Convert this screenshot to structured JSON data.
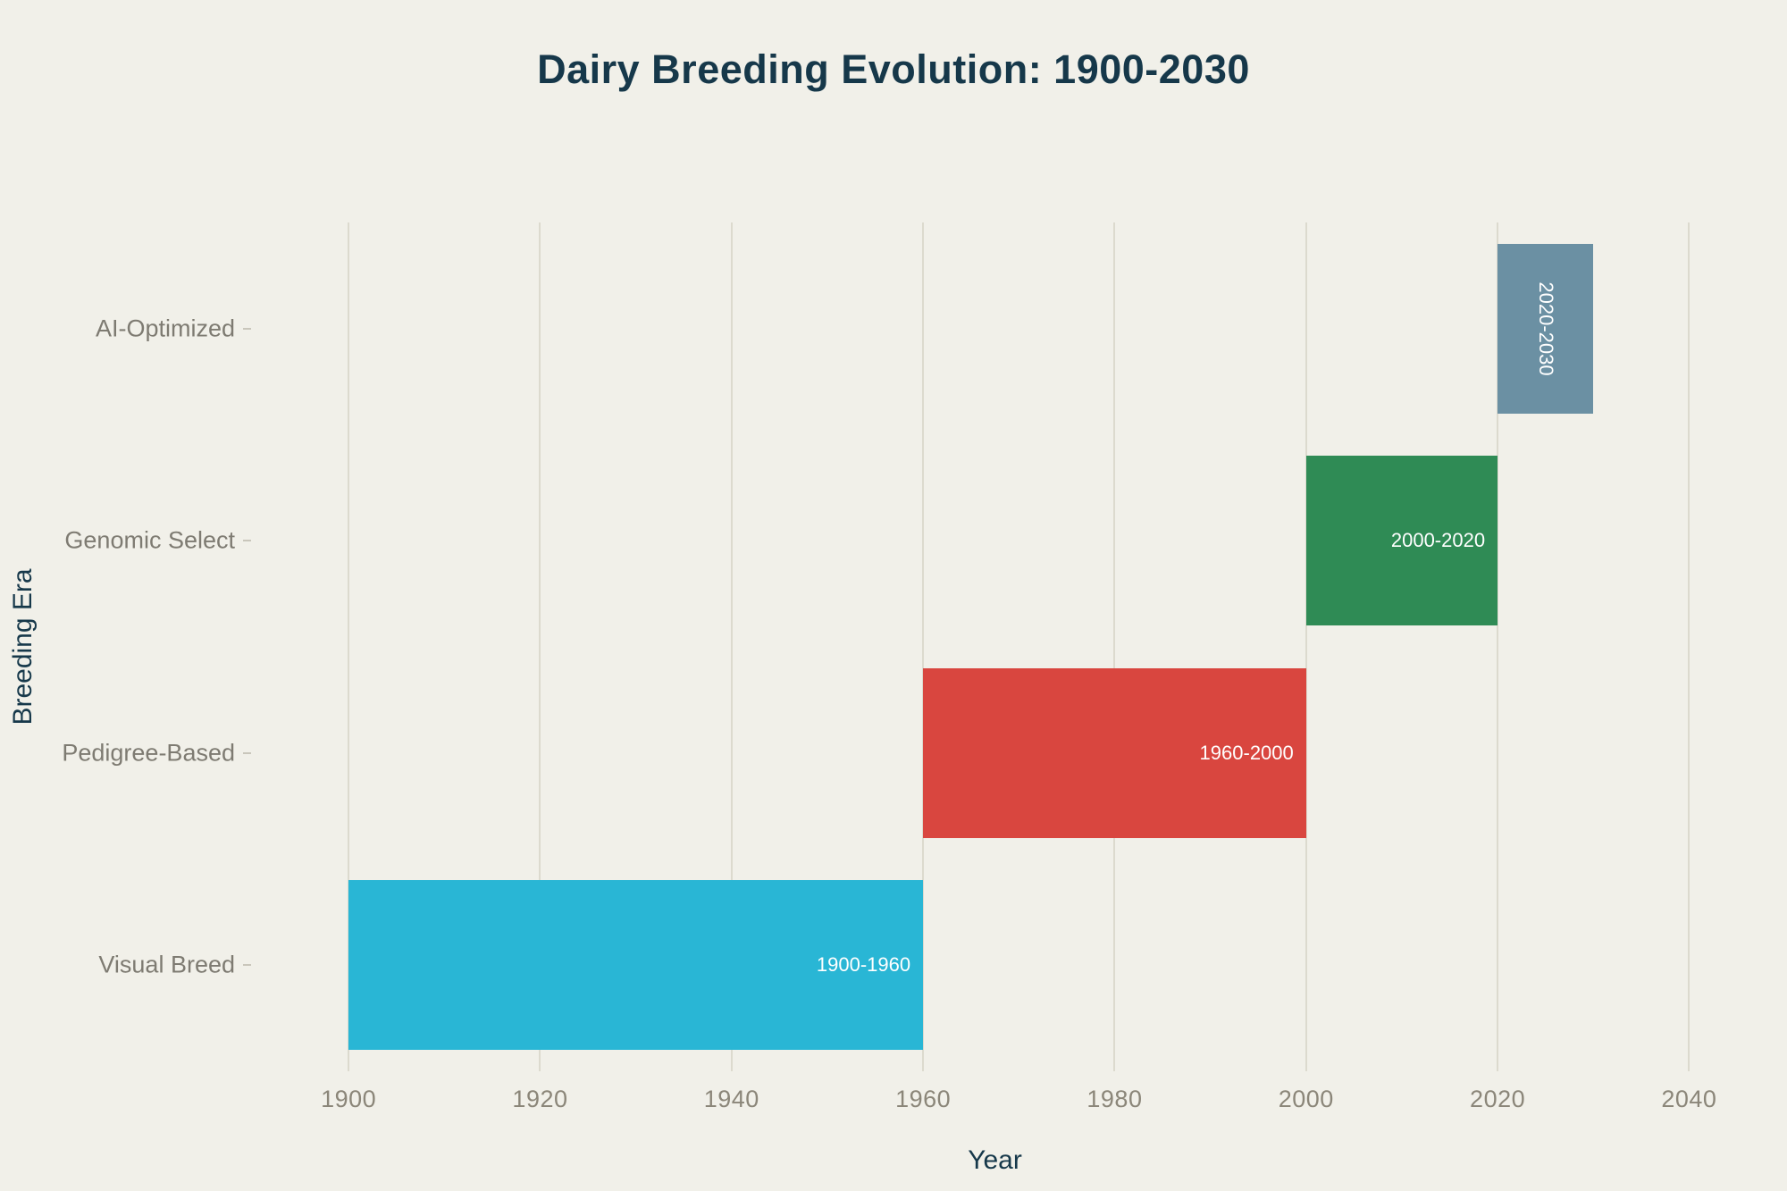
{
  "style": {
    "background": "#f1f0e9",
    "title_color": "#16384a",
    "grid_color": "#dcdace",
    "x_tick_color": "#8b8679",
    "y_category_color": "#7e7b72",
    "bar_label_color": "#ffffff"
  },
  "chart_data": {
    "type": "bar",
    "subtype": "gantt-timeline",
    "title": "Dairy Breeding Evolution: 1900-2030",
    "xlabel": "Year",
    "ylabel": "Breeding Era",
    "xlim": [
      1890,
      2045
    ],
    "x_ticks": [
      1900,
      1920,
      1940,
      1960,
      1980,
      2000,
      2020,
      2040
    ],
    "grid": true,
    "legend": false,
    "categories": [
      "AI-Optimized",
      "Genomic Select",
      "Pedigree-Based",
      "Visual Breed"
    ],
    "bars": [
      {
        "category": "AI-Optimized",
        "start": 2020,
        "end": 2030,
        "label": "2020-2030",
        "color": "#6b90a3",
        "label_rotated": true
      },
      {
        "category": "Genomic Select",
        "start": 2000,
        "end": 2020,
        "label": "2000-2020",
        "color": "#2f8b55",
        "label_rotated": false
      },
      {
        "category": "Pedigree-Based",
        "start": 1960,
        "end": 2000,
        "label": "1960-2000",
        "color": "#d9463f",
        "label_rotated": false
      },
      {
        "category": "Visual Breed",
        "start": 1900,
        "end": 1960,
        "label": "1900-1960",
        "color": "#29b6d5",
        "label_rotated": false
      }
    ]
  }
}
